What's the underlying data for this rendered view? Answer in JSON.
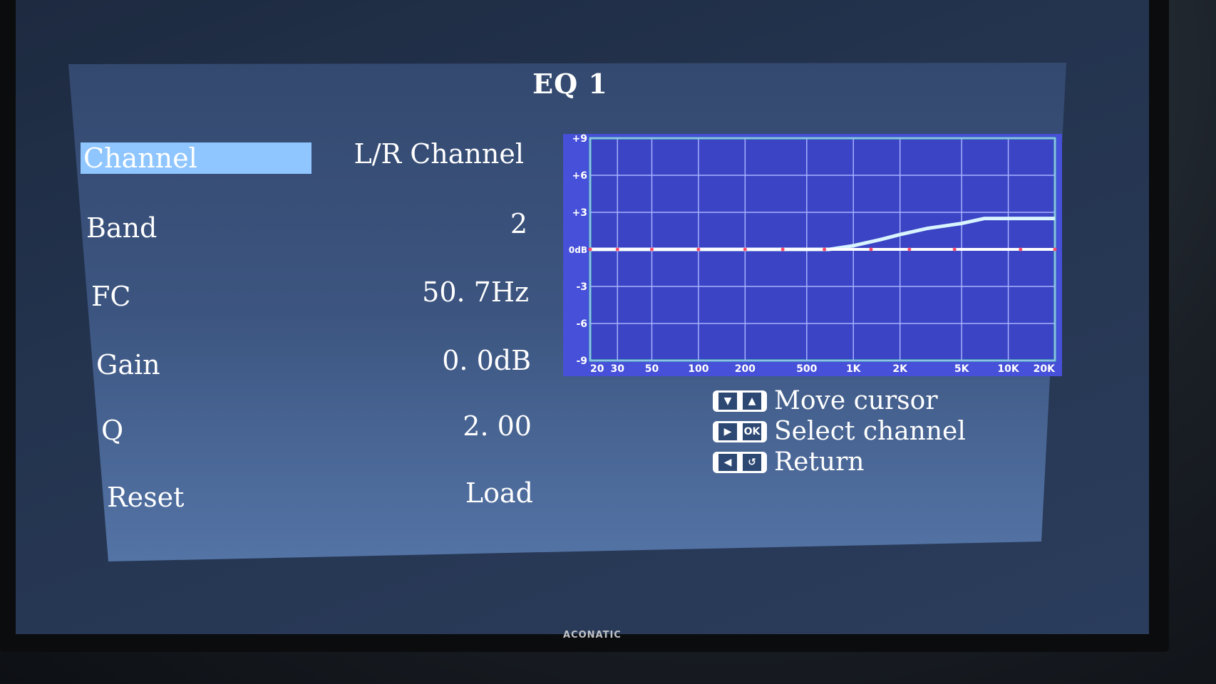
{
  "screen_title": "EQ 1",
  "menu": [
    {
      "label": "Channel",
      "value": "L/R Channel",
      "selected": true
    },
    {
      "label": "Band",
      "value": "2"
    },
    {
      "label": "FC",
      "value": "50. 7Hz"
    },
    {
      "label": "Gain",
      "value": "0. 0dB"
    },
    {
      "label": "Q",
      "value": "2. 00"
    },
    {
      "label": "Reset",
      "value": "Load"
    }
  ],
  "legend": [
    {
      "keys": [
        "down-arrow-icon",
        "up-arrow-icon"
      ],
      "text": "Move cursor"
    },
    {
      "keys": [
        "right-arrow-icon",
        "ok-icon"
      ],
      "ok_label": "OK",
      "text": "Select channel"
    },
    {
      "keys": [
        "left-arrow-icon",
        "return-icon"
      ],
      "text": "Return"
    }
  ],
  "brand": "ACONATIC",
  "colors": {
    "selection": "#8fc6ff",
    "plot_bg": "#3a44c4",
    "plot_border": "#4fe0a8",
    "curve": "#d8f4ff",
    "marker": "#ff4a6a"
  },
  "chart_data": {
    "type": "line",
    "x_scale": "log",
    "xlim": [
      20,
      20000
    ],
    "ylim": [
      -9,
      9
    ],
    "x_ticks": [
      20,
      30,
      50,
      100,
      200,
      500,
      1000,
      2000,
      5000,
      10000,
      20000
    ],
    "x_tick_labels": [
      "20",
      "30",
      "50",
      "100",
      "200",
      "500",
      "1K",
      "2K",
      "5K",
      "10K",
      "20K"
    ],
    "y_ticks": [
      9,
      6,
      3,
      0,
      -3,
      -6,
      -9
    ],
    "y_tick_labels": [
      "+9",
      "+6",
      "+3",
      "0dB",
      "-3",
      "-6",
      "-9"
    ],
    "grid": true,
    "series": [
      {
        "x": [
          20,
          700,
          1000,
          1500,
          2000,
          3000,
          5000,
          7000,
          20000
        ],
        "y": [
          0,
          0,
          0.3,
          0.8,
          1.2,
          1.7,
          2.1,
          2.5,
          2.5
        ]
      },
      {
        "x": [
          20,
          30,
          50,
          100,
          200,
          350,
          650,
          1300,
          2300,
          4500,
          12000,
          20000
        ],
        "y": [
          0,
          0,
          0,
          0,
          0,
          0,
          0,
          0,
          0,
          0,
          0,
          0
        ],
        "markers": true
      }
    ]
  }
}
